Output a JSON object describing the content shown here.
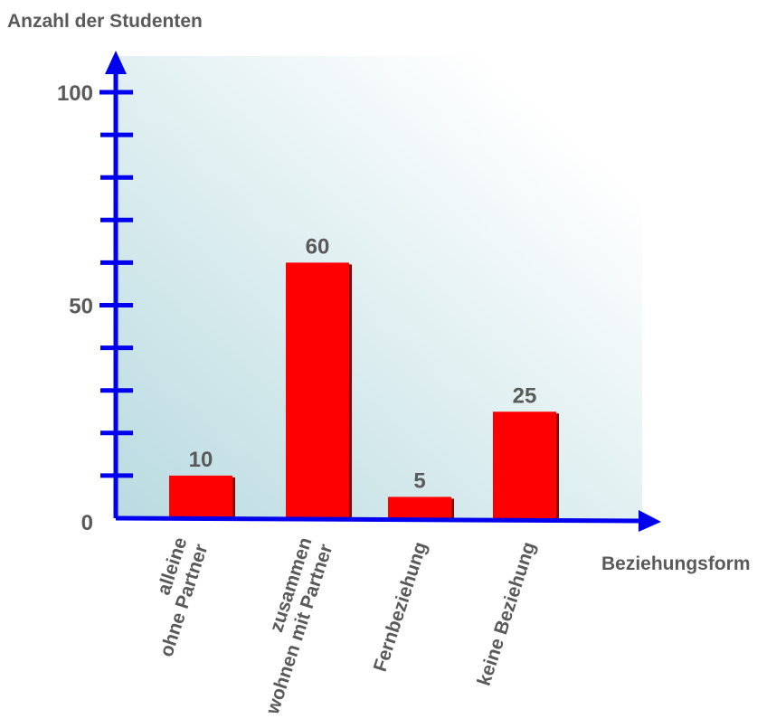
{
  "chart_data": {
    "type": "bar",
    "title": "",
    "ylabel": "Anzahl der Studenten",
    "xlabel": "Beziehungsform",
    "ylim": [
      0,
      100
    ],
    "major_ticks": [
      0,
      50,
      100
    ],
    "minor_tick_step": 10,
    "grid": false,
    "categories": [
      [
        "alleine",
        "ohne Partner"
      ],
      [
        "zusammen",
        "wohnen mit Partner"
      ],
      [
        "Fernbeziehung"
      ],
      [
        "keine Beziehung"
      ]
    ],
    "values": [
      10,
      60,
      5,
      25
    ],
    "colors": {
      "bar": "#ff0000",
      "axis": "#0000ee",
      "label": "#5a5a5a",
      "background_start": "#b9dbe0",
      "background_end": "#ffffff"
    }
  }
}
